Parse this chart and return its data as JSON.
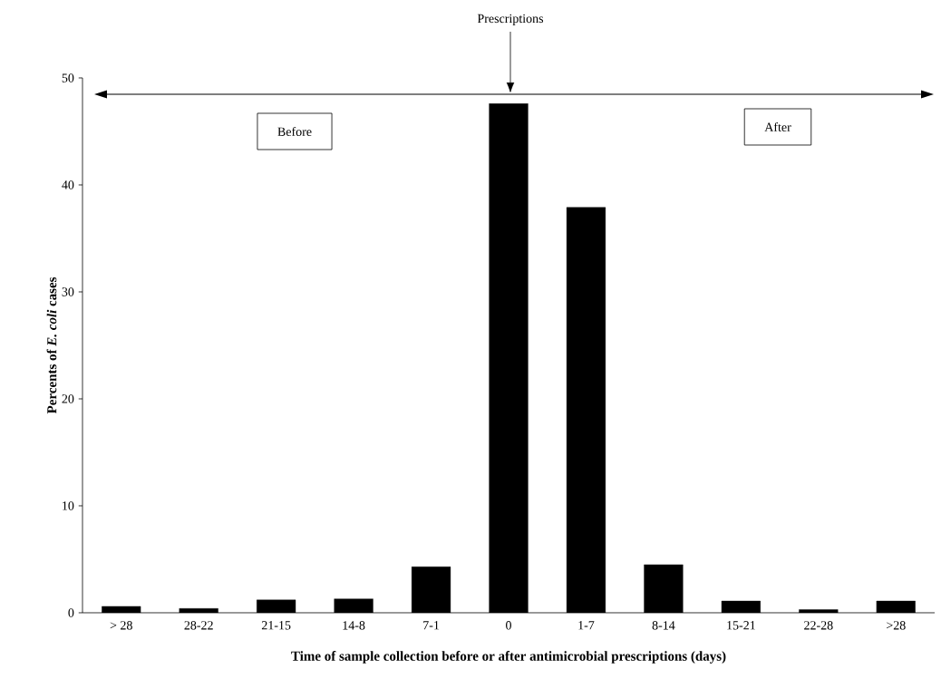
{
  "chart_data": {
    "type": "bar",
    "xlabel": "Time of sample collection before or after antimicrobial  prescriptions  (days)",
    "ylabel": "Percents of *E. coli* cases",
    "categories": [
      "> 28",
      "28-22",
      "21-15",
      "14-8",
      "7-1",
      "0",
      "1-7",
      "8-14",
      "15-21",
      "22-28",
      ">28"
    ],
    "values": [
      0.6,
      0.4,
      1.2,
      1.3,
      4.3,
      47.6,
      37.9,
      4.5,
      1.1,
      0.3,
      1.1
    ],
    "color": "#000000",
    "ylim": [
      0,
      50
    ],
    "yticks": [
      0,
      10,
      20,
      30,
      40,
      50
    ],
    "annotations": [
      "Prescriptions",
      "Before",
      "After"
    ]
  }
}
